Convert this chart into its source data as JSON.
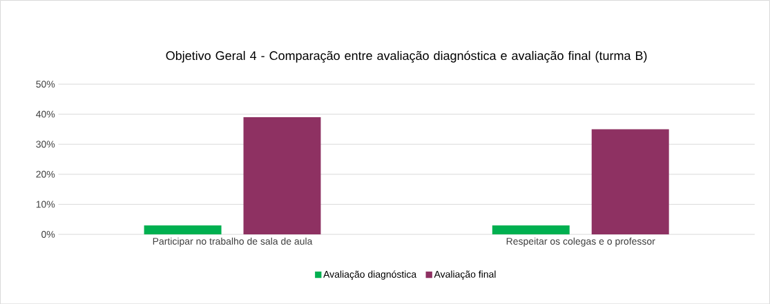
{
  "chart_data": {
    "type": "bar",
    "title": "Objetivo Geral 4 - Comparação entre avaliação diagnóstica e avaliação final (turma B)",
    "categories": [
      "Participar no trabalho de sala de aula",
      "Respeitar os colegas e o professor"
    ],
    "series": [
      {
        "name": "Avaliação diagnóstica",
        "color": "#00b050",
        "values": [
          3,
          3
        ]
      },
      {
        "name": "Avaliação final",
        "color": "#8e3162",
        "values": [
          39,
          35
        ]
      }
    ],
    "ylim": [
      0,
      50
    ],
    "yticks": [
      {
        "value": 0,
        "label": "0%"
      },
      {
        "value": 10,
        "label": "10%"
      },
      {
        "value": 20,
        "label": "20%"
      },
      {
        "value": 30,
        "label": "30%"
      },
      {
        "value": 40,
        "label": "40%"
      },
      {
        "value": 50,
        "label": "50%"
      }
    ],
    "grid": "y",
    "legend": "bottom"
  }
}
